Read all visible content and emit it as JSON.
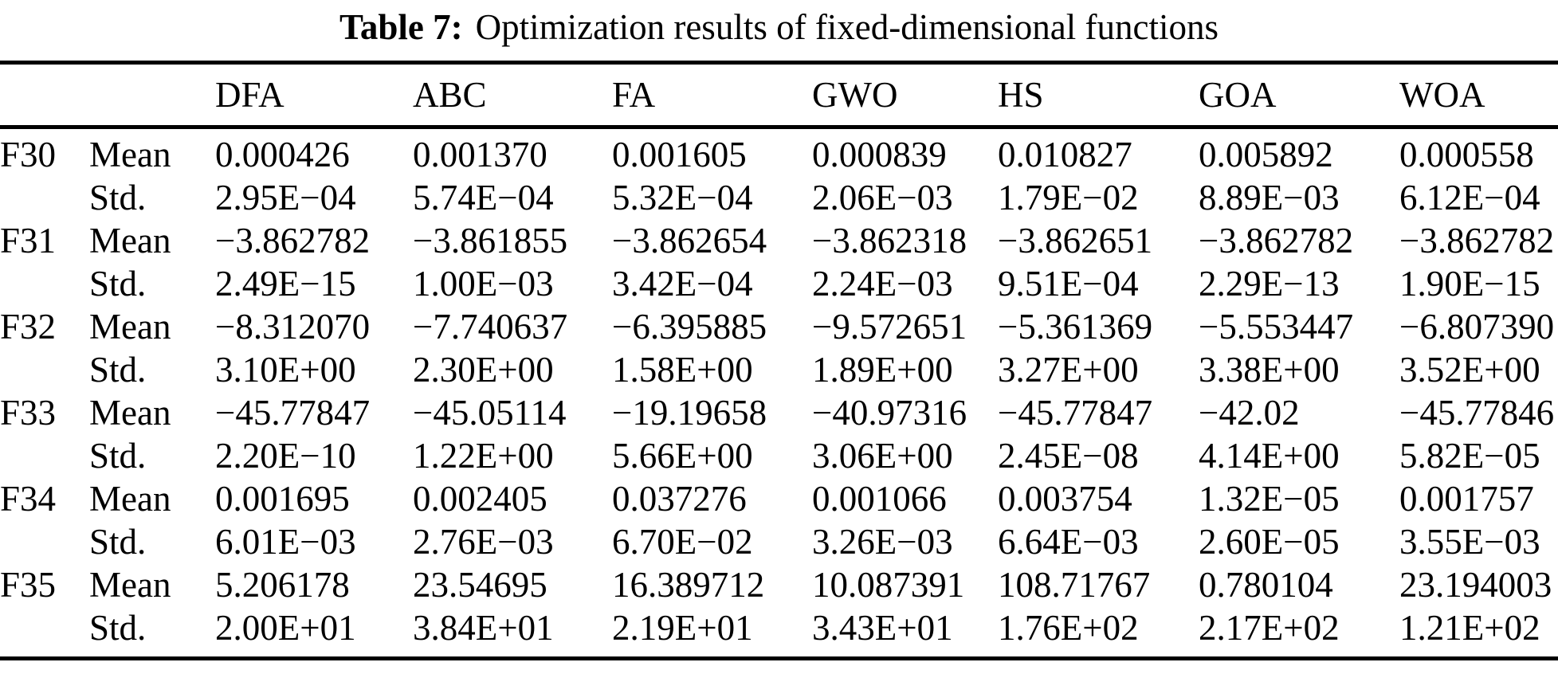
{
  "caption": {
    "label": "Table 7:",
    "text": "Optimization results of fixed-dimensional functions"
  },
  "table": {
    "columns": [
      "DFA",
      "ABC",
      "FA",
      "GWO",
      "HS",
      "GOA",
      "WOA"
    ],
    "stat_labels": {
      "mean": "Mean",
      "std": "Std."
    },
    "rows": [
      {
        "function": "F30",
        "mean": [
          "0.000426",
          "0.001370",
          "0.001605",
          "0.000839",
          "0.010827",
          "0.005892",
          "0.000558"
        ],
        "std": [
          "2.95E−04",
          "5.74E−04",
          "5.32E−04",
          "2.06E−03",
          "1.79E−02",
          "8.89E−03",
          "6.12E−04"
        ]
      },
      {
        "function": "F31",
        "mean": [
          "−3.862782",
          "−3.861855",
          "−3.862654",
          "−3.862318",
          "−3.862651",
          "−3.862782",
          "−3.862782"
        ],
        "std": [
          "2.49E−15",
          "1.00E−03",
          "3.42E−04",
          "2.24E−03",
          "9.51E−04",
          "2.29E−13",
          "1.90E−15"
        ]
      },
      {
        "function": "F32",
        "mean": [
          "−8.312070",
          "−7.740637",
          "−6.395885",
          "−9.572651",
          "−5.361369",
          "−5.553447",
          "−6.807390"
        ],
        "std": [
          "3.10E+00",
          "2.30E+00",
          "1.58E+00",
          "1.89E+00",
          "3.27E+00",
          "3.38E+00",
          "3.52E+00"
        ]
      },
      {
        "function": "F33",
        "mean": [
          "−45.77847",
          "−45.05114",
          "−19.19658",
          "−40.97316",
          "−45.77847",
          "−42.02",
          "−45.77846"
        ],
        "std": [
          "2.20E−10",
          "1.22E+00",
          "5.66E+00",
          "3.06E+00",
          "2.45E−08",
          "4.14E+00",
          "5.82E−05"
        ]
      },
      {
        "function": "F34",
        "mean": [
          "0.001695",
          "0.002405",
          "0.037276",
          "0.001066",
          "0.003754",
          "1.32E−05",
          "0.001757"
        ],
        "std": [
          "6.01E−03",
          "2.76E−03",
          "6.70E−02",
          "3.26E−03",
          "6.64E−03",
          "2.60E−05",
          "3.55E−03"
        ]
      },
      {
        "function": "F35",
        "mean": [
          "5.206178",
          "23.54695",
          "16.389712",
          "10.087391",
          "108.71767",
          "0.780104",
          "23.194003"
        ],
        "std": [
          "2.00E+01",
          "3.84E+01",
          "2.19E+01",
          "3.43E+01",
          "1.76E+02",
          "2.17E+02",
          "1.21E+02"
        ]
      }
    ]
  },
  "colors": {
    "text": "#000000",
    "rule": "#000000",
    "background": "#ffffff"
  }
}
